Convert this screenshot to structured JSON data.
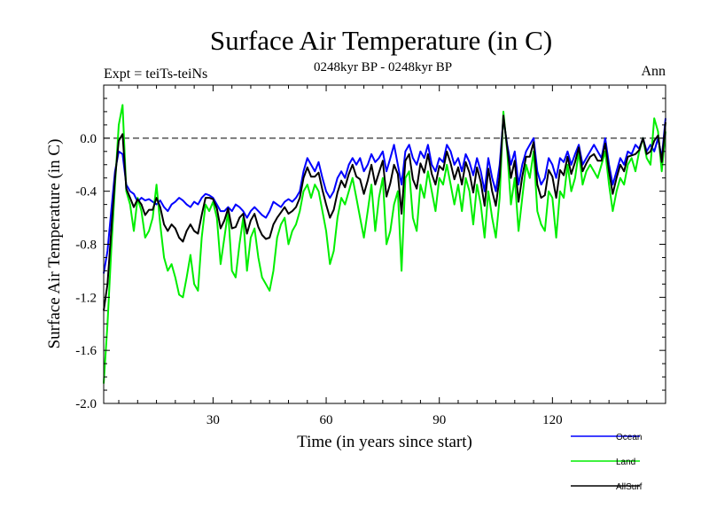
{
  "chart_data": {
    "type": "line",
    "title": "Surface Air Temperature (in C)",
    "subtitle": "0248kyr BP - 0248kyr BP",
    "left_label": "Expt = teiTs-teiNs",
    "right_label": "Ann",
    "xlabel": "Time (in years since start)",
    "ylabel": "Surface Air Temperature (in C)",
    "xlim": [
      1,
      150
    ],
    "ylim": [
      -2.0,
      0.4
    ],
    "x_ticks": [
      30,
      60,
      90,
      120
    ],
    "x_tick_labels": [
      "30",
      "60",
      "90",
      "120"
    ],
    "y_ticks": [
      -2.0,
      -1.6,
      -1.2,
      -0.8,
      -0.4,
      0.0
    ],
    "y_tick_labels": [
      "-2.0",
      "-1.6",
      "-1.2",
      "-0.8",
      "-0.4",
      "0.0"
    ],
    "reference_line": 0.0,
    "legend": {
      "position": "bottom-right",
      "entries": [
        "Ocean",
        "Land",
        "AllSurf"
      ]
    },
    "x_start": 1,
    "series": [
      {
        "name": "Ocean",
        "color": "#0000ff",
        "values": [
          -1.02,
          -0.85,
          -0.55,
          -0.25,
          -0.1,
          -0.12,
          -0.35,
          -0.4,
          -0.42,
          -0.48,
          -0.45,
          -0.47,
          -0.46,
          -0.48,
          -0.5,
          -0.47,
          -0.52,
          -0.55,
          -0.5,
          -0.48,
          -0.45,
          -0.47,
          -0.5,
          -0.52,
          -0.48,
          -0.5,
          -0.45,
          -0.42,
          -0.43,
          -0.45,
          -0.5,
          -0.55,
          -0.55,
          -0.52,
          -0.55,
          -0.5,
          -0.52,
          -0.55,
          -0.6,
          -0.55,
          -0.52,
          -0.55,
          -0.58,
          -0.6,
          -0.55,
          -0.48,
          -0.5,
          -0.52,
          -0.48,
          -0.46,
          -0.48,
          -0.45,
          -0.4,
          -0.25,
          -0.15,
          -0.2,
          -0.25,
          -0.18,
          -0.3,
          -0.4,
          -0.45,
          -0.4,
          -0.3,
          -0.25,
          -0.3,
          -0.2,
          -0.15,
          -0.2,
          -0.15,
          -0.25,
          -0.2,
          -0.12,
          -0.18,
          -0.15,
          -0.1,
          -0.25,
          -0.15,
          -0.05,
          -0.2,
          -0.35,
          -0.1,
          -0.05,
          -0.15,
          -0.2,
          -0.1,
          -0.15,
          -0.05,
          -0.2,
          -0.25,
          -0.15,
          -0.18,
          -0.05,
          -0.1,
          -0.2,
          -0.15,
          -0.25,
          -0.12,
          -0.18,
          -0.28,
          -0.15,
          -0.25,
          -0.4,
          -0.15,
          -0.3,
          -0.4,
          -0.2,
          0.15,
          -0.05,
          -0.2,
          -0.1,
          -0.35,
          -0.2,
          -0.1,
          -0.05,
          0.0,
          -0.25,
          -0.35,
          -0.3,
          -0.15,
          -0.2,
          -0.3,
          -0.15,
          -0.18,
          -0.1,
          -0.2,
          -0.12,
          -0.05,
          -0.2,
          -0.15,
          -0.1,
          -0.05,
          -0.1,
          -0.15,
          0.0,
          -0.2,
          -0.35,
          -0.25,
          -0.15,
          -0.2,
          -0.1,
          -0.12,
          -0.05,
          -0.08,
          0.0,
          -0.1,
          -0.05,
          -0.1,
          0.0,
          -0.15,
          0.15
        ]
      },
      {
        "name": "Land",
        "color": "#00ee00",
        "values": [
          -1.85,
          -1.4,
          -0.85,
          -0.35,
          0.1,
          0.25,
          -0.4,
          -0.5,
          -0.7,
          -0.45,
          -0.55,
          -0.75,
          -0.7,
          -0.6,
          -0.35,
          -0.65,
          -0.9,
          -1.0,
          -0.95,
          -1.05,
          -1.18,
          -1.2,
          -1.05,
          -0.88,
          -1.1,
          -1.15,
          -0.75,
          -0.5,
          -0.55,
          -0.48,
          -0.6,
          -0.95,
          -0.75,
          -0.55,
          -1.0,
          -1.05,
          -0.8,
          -0.6,
          -1.0,
          -0.75,
          -0.68,
          -0.9,
          -1.05,
          -1.1,
          -1.15,
          -1.0,
          -0.75,
          -0.65,
          -0.6,
          -0.8,
          -0.7,
          -0.65,
          -0.55,
          -0.4,
          -0.35,
          -0.45,
          -0.35,
          -0.4,
          -0.55,
          -0.7,
          -0.95,
          -0.85,
          -0.6,
          -0.45,
          -0.5,
          -0.4,
          -0.3,
          -0.45,
          -0.6,
          -0.75,
          -0.55,
          -0.35,
          -0.7,
          -0.45,
          -0.3,
          -0.8,
          -0.7,
          -0.5,
          -0.4,
          -1.0,
          -0.3,
          -0.25,
          -0.6,
          -0.7,
          -0.35,
          -0.45,
          -0.25,
          -0.4,
          -0.55,
          -0.3,
          -0.35,
          -0.2,
          -0.35,
          -0.5,
          -0.35,
          -0.55,
          -0.3,
          -0.4,
          -0.65,
          -0.35,
          -0.5,
          -0.75,
          -0.4,
          -0.6,
          -0.75,
          -0.45,
          0.2,
          -0.1,
          -0.5,
          -0.3,
          -0.7,
          -0.45,
          -0.2,
          -0.3,
          -0.1,
          -0.55,
          -0.65,
          -0.7,
          -0.4,
          -0.45,
          -0.75,
          -0.4,
          -0.45,
          -0.2,
          -0.4,
          -0.3,
          -0.1,
          -0.35,
          -0.25,
          -0.2,
          -0.25,
          -0.3,
          -0.2,
          -0.1,
          -0.35,
          -0.55,
          -0.4,
          -0.3,
          -0.35,
          -0.2,
          -0.15,
          -0.25,
          -0.1,
          0.0,
          -0.15,
          -0.2,
          0.15,
          0.05,
          -0.25,
          0.05
        ]
      },
      {
        "name": "AllSurf",
        "color": "#000000",
        "values": [
          -1.3,
          -1.1,
          -0.7,
          -0.3,
          -0.02,
          0.03,
          -0.38,
          -0.45,
          -0.52,
          -0.46,
          -0.5,
          -0.58,
          -0.54,
          -0.54,
          -0.45,
          -0.52,
          -0.65,
          -0.7,
          -0.65,
          -0.68,
          -0.75,
          -0.78,
          -0.7,
          -0.65,
          -0.7,
          -0.72,
          -0.58,
          -0.45,
          -0.45,
          -0.46,
          -0.53,
          -0.68,
          -0.62,
          -0.53,
          -0.68,
          -0.67,
          -0.6,
          -0.57,
          -0.72,
          -0.62,
          -0.57,
          -0.67,
          -0.73,
          -0.76,
          -0.75,
          -0.65,
          -0.6,
          -0.56,
          -0.52,
          -0.57,
          -0.55,
          -0.52,
          -0.45,
          -0.3,
          -0.22,
          -0.29,
          -0.29,
          -0.26,
          -0.39,
          -0.5,
          -0.6,
          -0.54,
          -0.41,
          -0.32,
          -0.37,
          -0.27,
          -0.2,
          -0.29,
          -0.31,
          -0.42,
          -0.32,
          -0.2,
          -0.35,
          -0.26,
          -0.17,
          -0.44,
          -0.34,
          -0.2,
          -0.27,
          -0.57,
          -0.17,
          -0.12,
          -0.31,
          -0.38,
          -0.19,
          -0.26,
          -0.12,
          -0.27,
          -0.35,
          -0.21,
          -0.24,
          -0.1,
          -0.19,
          -0.31,
          -0.22,
          -0.35,
          -0.18,
          -0.26,
          -0.41,
          -0.22,
          -0.33,
          -0.51,
          -0.23,
          -0.4,
          -0.51,
          -0.29,
          0.17,
          -0.07,
          -0.3,
          -0.17,
          -0.48,
          -0.29,
          -0.14,
          -0.14,
          -0.03,
          -0.35,
          -0.45,
          -0.43,
          -0.24,
          -0.29,
          -0.45,
          -0.24,
          -0.28,
          -0.14,
          -0.27,
          -0.18,
          -0.07,
          -0.25,
          -0.19,
          -0.14,
          -0.12,
          -0.17,
          -0.17,
          -0.04,
          -0.25,
          -0.42,
          -0.3,
          -0.2,
          -0.25,
          -0.14,
          -0.13,
          -0.12,
          -0.09,
          0.0,
          -0.12,
          -0.1,
          -0.02,
          0.02,
          -0.18,
          0.12
        ]
      }
    ]
  }
}
